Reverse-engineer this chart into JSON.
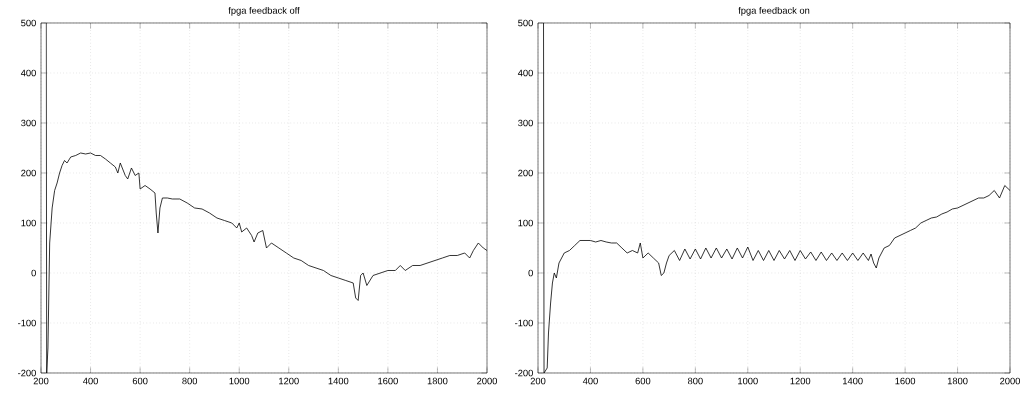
{
  "chart_data": [
    {
      "type": "line",
      "title": "fpga feedback off",
      "color": "#000000",
      "grid": true,
      "xlim": [
        200,
        2000
      ],
      "ylim": [
        -200,
        500
      ],
      "xticks": [
        200,
        400,
        600,
        800,
        1000,
        1200,
        1400,
        1600,
        1800,
        2000
      ],
      "yticks": [
        -200,
        -100,
        0,
        100,
        200,
        300,
        400,
        500
      ],
      "x": [
        221,
        223,
        228,
        235,
        245,
        255,
        265,
        275,
        285,
        295,
        305,
        320,
        340,
        360,
        380,
        400,
        420,
        440,
        460,
        480,
        500,
        510,
        520,
        540,
        550,
        565,
        580,
        595,
        600,
        620,
        640,
        660,
        665,
        672,
        680,
        690,
        710,
        730,
        760,
        790,
        820,
        850,
        880,
        910,
        940,
        970,
        990,
        1000,
        1010,
        1030,
        1050,
        1060,
        1075,
        1095,
        1110,
        1130,
        1160,
        1190,
        1220,
        1250,
        1280,
        1310,
        1340,
        1370,
        1400,
        1430,
        1460,
        1470,
        1480,
        1490,
        1500,
        1515,
        1540,
        1570,
        1600,
        1630,
        1650,
        1670,
        1700,
        1730,
        1760,
        1790,
        1820,
        1850,
        1880,
        1910,
        1930,
        1945,
        1965,
        1985,
        2000
      ],
      "values": [
        500,
        -200,
        -150,
        60,
        130,
        165,
        180,
        200,
        215,
        225,
        220,
        232,
        235,
        240,
        238,
        240,
        235,
        235,
        228,
        220,
        212,
        200,
        220,
        195,
        188,
        210,
        195,
        200,
        168,
        175,
        168,
        160,
        120,
        80,
        130,
        150,
        150,
        148,
        148,
        140,
        130,
        128,
        120,
        110,
        105,
        100,
        90,
        100,
        82,
        90,
        75,
        62,
        80,
        85,
        50,
        60,
        50,
        40,
        30,
        25,
        15,
        10,
        5,
        -5,
        -10,
        -15,
        -20,
        -50,
        -55,
        -5,
        0,
        -25,
        -5,
        0,
        5,
        5,
        15,
        5,
        15,
        15,
        20,
        25,
        30,
        35,
        35,
        40,
        30,
        45,
        60,
        50,
        45
      ]
    },
    {
      "type": "line",
      "title": "fpga feedback on",
      "color": "#000000",
      "grid": true,
      "xlim": [
        200,
        2000
      ],
      "ylim": [
        -200,
        500
      ],
      "xticks": [
        200,
        400,
        600,
        800,
        1000,
        1200,
        1400,
        1600,
        1800,
        2000
      ],
      "yticks": [
        -200,
        -100,
        0,
        100,
        200,
        300,
        400,
        500
      ],
      "x": [
        221,
        223,
        235,
        240,
        248,
        255,
        262,
        270,
        280,
        290,
        300,
        320,
        340,
        360,
        380,
        400,
        420,
        440,
        460,
        480,
        500,
        520,
        540,
        560,
        580,
        590,
        600,
        620,
        640,
        660,
        670,
        680,
        690,
        700,
        720,
        740,
        760,
        780,
        800,
        820,
        840,
        860,
        880,
        900,
        920,
        940,
        960,
        980,
        1000,
        1020,
        1040,
        1060,
        1080,
        1100,
        1120,
        1140,
        1160,
        1180,
        1200,
        1220,
        1240,
        1260,
        1280,
        1300,
        1320,
        1340,
        1360,
        1380,
        1400,
        1420,
        1440,
        1460,
        1470,
        1480,
        1490,
        1500,
        1520,
        1540,
        1560,
        1580,
        1600,
        1620,
        1640,
        1660,
        1680,
        1700,
        1720,
        1740,
        1760,
        1780,
        1800,
        1820,
        1840,
        1860,
        1880,
        1900,
        1920,
        1940,
        1960,
        1980,
        2000
      ],
      "values": [
        500,
        -200,
        -190,
        -120,
        -60,
        -20,
        0,
        -10,
        20,
        30,
        40,
        45,
        55,
        65,
        65,
        65,
        62,
        65,
        62,
        60,
        60,
        50,
        40,
        45,
        40,
        60,
        30,
        40,
        30,
        20,
        -5,
        0,
        20,
        35,
        45,
        25,
        48,
        28,
        48,
        28,
        50,
        30,
        50,
        30,
        48,
        28,
        50,
        30,
        52,
        25,
        45,
        25,
        45,
        25,
        45,
        28,
        45,
        25,
        45,
        28,
        42,
        25,
        42,
        25,
        40,
        25,
        40,
        25,
        40,
        25,
        40,
        25,
        38,
        20,
        10,
        30,
        50,
        55,
        70,
        75,
        80,
        85,
        90,
        100,
        105,
        110,
        112,
        118,
        122,
        128,
        130,
        135,
        140,
        145,
        150,
        150,
        155,
        165,
        150,
        175,
        165
      ]
    }
  ]
}
